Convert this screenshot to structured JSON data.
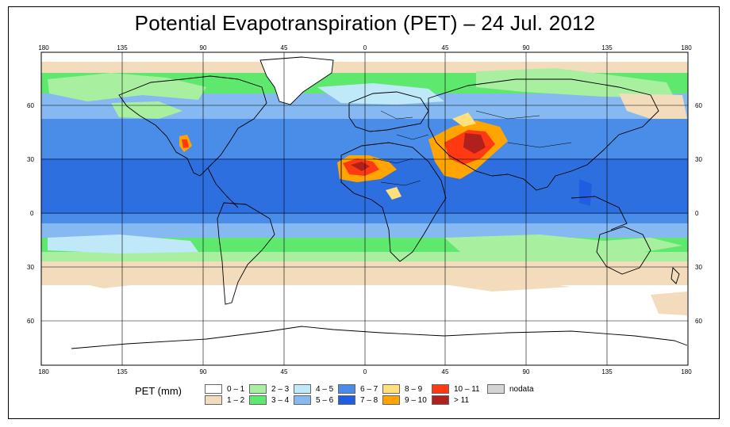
{
  "title": "Potential Evapotranspiration (PET) – 24 Jul. 2012",
  "map": {
    "lon_ticks": [
      "180",
      "135",
      "90",
      "45",
      "0",
      "45",
      "90",
      "135",
      "180"
    ],
    "lat_ticks": [
      "60",
      "30",
      "0",
      "30",
      "60"
    ],
    "colors": {
      "ocean_deep": "#2e6fdf",
      "ocean_mid": "#4a8de8",
      "ocean_light": "#86b9f2",
      "ice": "#ffffff",
      "boundary": "#000000"
    }
  },
  "legend": {
    "label": "PET (mm)",
    "entries": [
      {
        "label": "0 – 1",
        "color": "#ffffff"
      },
      {
        "label": "1 – 2",
        "color": "#f2dcbc"
      },
      {
        "label": "2 – 3",
        "color": "#a8f0a0"
      },
      {
        "label": "3 – 4",
        "color": "#5fe86e"
      },
      {
        "label": "4 – 5",
        "color": "#bfe8f8"
      },
      {
        "label": "5 – 6",
        "color": "#86b9f2"
      },
      {
        "label": "6 – 7",
        "color": "#4a8de8"
      },
      {
        "label": "7 – 8",
        "color": "#1f5ee0"
      },
      {
        "label": "8 – 9",
        "color": "#ffe07a"
      },
      {
        "label": "9 – 10",
        "color": "#ffa400"
      },
      {
        "label": "10 – 11",
        "color": "#ff3a12"
      },
      {
        "label": "> 11",
        "color": "#b0201c"
      },
      {
        "label": "nodata",
        "color": "#d4d4d4"
      }
    ]
  }
}
